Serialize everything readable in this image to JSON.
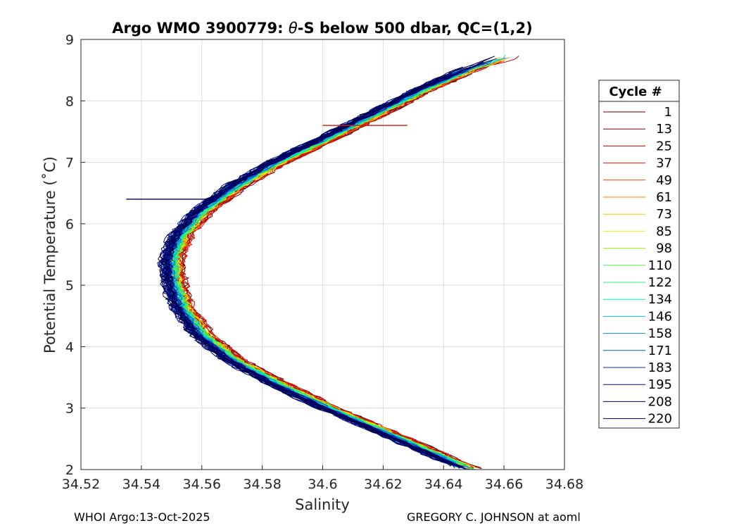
{
  "chart_data": {
    "type": "line",
    "title": "Argo WMO 3900779: θ-S below 500 dbar,  QC=(1,2)",
    "title_parts": [
      "Argo WMO 3900779: ",
      "θ",
      "-S below 500 dbar,  QC=(1,2)"
    ],
    "xlabel": "Salinity",
    "ylabel": "Potential Temperature (˚C)",
    "xlim": [
      34.52,
      34.68
    ],
    "ylim": [
      2,
      9
    ],
    "xticks": [
      34.52,
      34.54,
      34.56,
      34.58,
      34.6,
      34.62,
      34.64,
      34.66,
      34.68
    ],
    "xtick_labels": [
      "34.52",
      "34.54",
      "34.56",
      "34.58",
      "34.6",
      "34.62",
      "34.64",
      "34.66",
      "34.68"
    ],
    "yticks": [
      2,
      3,
      4,
      5,
      6,
      7,
      8,
      9
    ],
    "ytick_labels": [
      "2",
      "3",
      "4",
      "5",
      "6",
      "7",
      "8",
      "9"
    ],
    "grid": true,
    "legend": {
      "title": "Cycle #",
      "position": "right",
      "entries": [
        {
          "label": "1",
          "color": "#4d0000"
        },
        {
          "label": "13",
          "color": "#800000"
        },
        {
          "label": "25",
          "color": "#b30000"
        },
        {
          "label": "37",
          "color": "#d91a00"
        },
        {
          "label": "49",
          "color": "#f24000"
        },
        {
          "label": "61",
          "color": "#ff7a00"
        },
        {
          "label": "73",
          "color": "#ffc000"
        },
        {
          "label": "85",
          "color": "#f0f000"
        },
        {
          "label": "98",
          "color": "#a0f000"
        },
        {
          "label": "110",
          "color": "#50f040"
        },
        {
          "label": "122",
          "color": "#20f080"
        },
        {
          "label": "134",
          "color": "#10e0c0"
        },
        {
          "label": "146",
          "color": "#00c0e0"
        },
        {
          "label": "158",
          "color": "#0090e0"
        },
        {
          "label": "171",
          "color": "#0060d0"
        },
        {
          "label": "183",
          "color": "#0030b0"
        },
        {
          "label": "195",
          "color": "#001090"
        },
        {
          "label": "208",
          "color": "#000070"
        },
        {
          "label": "220",
          "color": "#000050"
        }
      ]
    },
    "mean_profile": {
      "theta": [
        2.0,
        2.3,
        2.6,
        3.0,
        3.4,
        3.8,
        4.2,
        4.6,
        5.0,
        5.4,
        5.8,
        6.2,
        6.6,
        7.0,
        7.4,
        7.8,
        8.2,
        8.5,
        8.7
      ],
      "salinity": [
        34.649,
        34.635,
        34.621,
        34.602,
        34.585,
        34.57,
        34.56,
        34.554,
        34.551,
        34.55,
        34.553,
        34.56,
        34.571,
        34.585,
        34.602,
        34.618,
        34.634,
        34.648,
        34.66
      ]
    },
    "annotations": [
      {
        "type": "outlier",
        "cycle": "220",
        "theta": 6.4,
        "salinity_from": 34.535,
        "salinity_to": 34.562
      },
      {
        "type": "outlier",
        "cycle": "37",
        "theta": 7.6,
        "salinity_from": 34.6,
        "salinity_to": 34.628
      }
    ]
  },
  "footer": {
    "left": "WHOI Argo:13-Oct-2025",
    "right": "GREGORY C. JOHNSON at aoml"
  }
}
